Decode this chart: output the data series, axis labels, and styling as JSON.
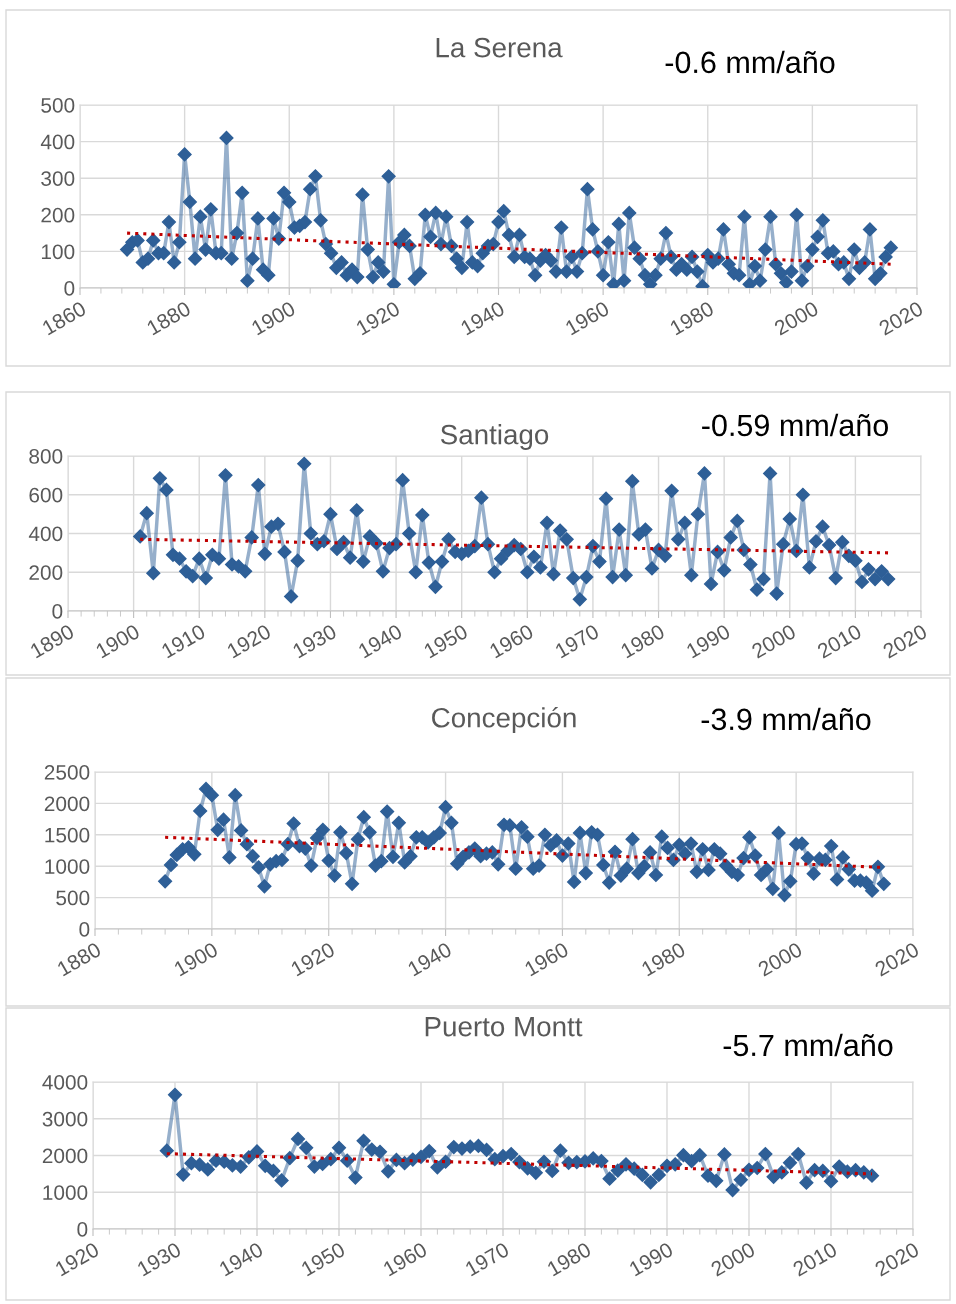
{
  "chart_data": [
    {
      "type": "line",
      "title": "La Serena",
      "annotations": [
        "-0.6 mm/año"
      ],
      "xlim": [
        1860,
        2020
      ],
      "xticks": [
        1860,
        1880,
        1900,
        1920,
        1940,
        1960,
        1980,
        2000,
        2020
      ],
      "ylim": [
        0,
        500
      ],
      "yticks": [
        0,
        100,
        200,
        300,
        400,
        500
      ],
      "grid": true,
      "legend": false,
      "series": [
        {
          "color": "#2e5f97",
          "marker": "diamond",
          "line_style": "solid",
          "x": [
            1869,
            1870,
            1871,
            1872,
            1873,
            1874,
            1875,
            1876,
            1877,
            1878,
            1879,
            1880,
            1881,
            1882,
            1883,
            1884,
            1885,
            1886,
            1887,
            1888,
            1889,
            1890,
            1891,
            1892,
            1893,
            1894,
            1895,
            1896,
            1897,
            1898,
            1899,
            1900,
            1901,
            1902,
            1903,
            1904,
            1905,
            1906,
            1907,
            1908,
            1909,
            1910,
            1911,
            1912,
            1913,
            1914,
            1915,
            1916,
            1917,
            1918,
            1919,
            1920,
            1921,
            1922,
            1923,
            1924,
            1925,
            1926,
            1927,
            1928,
            1929,
            1930,
            1931,
            1932,
            1933,
            1934,
            1935,
            1936,
            1937,
            1938,
            1939,
            1940,
            1941,
            1942,
            1943,
            1944,
            1945,
            1946,
            1947,
            1948,
            1949,
            1950,
            1951,
            1952,
            1953,
            1954,
            1955,
            1956,
            1957,
            1958,
            1959,
            1960,
            1961,
            1962,
            1963,
            1964,
            1965,
            1966,
            1967,
            1968,
            1969,
            1970,
            1971,
            1972,
            1973,
            1974,
            1975,
            1976,
            1977,
            1978,
            1979,
            1980,
            1981,
            1982,
            1983,
            1984,
            1985,
            1986,
            1987,
            1988,
            1989,
            1990,
            1991,
            1992,
            1993,
            1994,
            1995,
            1996,
            1997,
            1998,
            1999,
            2000,
            2001,
            2002,
            2003,
            2004,
            2005,
            2006,
            2007,
            2008,
            2009,
            2010,
            2011,
            2012,
            2013,
            2014,
            2015
          ],
          "values": [
            105,
            125,
            130,
            70,
            80,
            130,
            95,
            95,
            180,
            70,
            125,
            365,
            235,
            80,
            195,
            105,
            215,
            95,
            95,
            410,
            80,
            150,
            260,
            20,
            80,
            190,
            50,
            35,
            190,
            135,
            260,
            235,
            165,
            170,
            180,
            270,
            305,
            185,
            120,
            95,
            55,
            70,
            35,
            50,
            30,
            255,
            105,
            30,
            70,
            45,
            305,
            10,
            125,
            145,
            115,
            25,
            40,
            200,
            140,
            205,
            120,
            195,
            115,
            80,
            55,
            180,
            70,
            60,
            95,
            115,
            120,
            180,
            210,
            145,
            85,
            145,
            85,
            80,
            35,
            75,
            90,
            75,
            45,
            165,
            45,
            85,
            45,
            95,
            270,
            160,
            100,
            35,
            125,
            10,
            175,
            20,
            205,
            110,
            80,
            35,
            10,
            35,
            80,
            150,
            85,
            50,
            65,
            50,
            85,
            45,
            5,
            90,
            70,
            80,
            160,
            65,
            40,
            35,
            195,
            10,
            60,
            20,
            105,
            195,
            65,
            40,
            15,
            45,
            200,
            20,
            60,
            105,
            140,
            185,
            95,
            100,
            65,
            70,
            25,
            105,
            55,
            70,
            160,
            25,
            40,
            85,
            110
          ]
        },
        {
          "type": "line",
          "color": "#c00000",
          "marker": "none",
          "line_style": "dotted",
          "x": [
            1869,
            2015
          ],
          "values": [
            150,
            65
          ]
        }
      ]
    },
    {
      "type": "line",
      "title": "Santiago",
      "annotations": [
        "-0.59 mm/año"
      ],
      "xlim": [
        1890,
        2020
      ],
      "xticks": [
        1890,
        1900,
        1910,
        1920,
        1930,
        1940,
        1950,
        1960,
        1970,
        1980,
        1990,
        2000,
        2010,
        2020
      ],
      "ylim": [
        0,
        800
      ],
      "yticks": [
        0,
        200,
        400,
        600,
        800
      ],
      "grid": true,
      "legend": false,
      "series": [
        {
          "color": "#2e5f97",
          "marker": "diamond",
          "line_style": "solid",
          "x": [
            1901,
            1902,
            1903,
            1904,
            1905,
            1906,
            1907,
            1908,
            1909,
            1910,
            1911,
            1912,
            1913,
            1914,
            1915,
            1916,
            1917,
            1918,
            1919,
            1920,
            1921,
            1922,
            1923,
            1924,
            1925,
            1926,
            1927,
            1928,
            1929,
            1930,
            1931,
            1932,
            1933,
            1934,
            1935,
            1936,
            1937,
            1938,
            1939,
            1940,
            1941,
            1942,
            1943,
            1944,
            1945,
            1946,
            1947,
            1948,
            1949,
            1950,
            1951,
            1952,
            1953,
            1954,
            1955,
            1956,
            1957,
            1958,
            1959,
            1960,
            1961,
            1962,
            1963,
            1964,
            1965,
            1966,
            1967,
            1968,
            1969,
            1970,
            1971,
            1972,
            1973,
            1974,
            1975,
            1976,
            1977,
            1978,
            1979,
            1980,
            1981,
            1982,
            1983,
            1984,
            1985,
            1986,
            1987,
            1988,
            1989,
            1990,
            1991,
            1992,
            1993,
            1994,
            1995,
            1996,
            1997,
            1998,
            1999,
            2000,
            2001,
            2002,
            2003,
            2004,
            2005,
            2006,
            2007,
            2008,
            2009,
            2010,
            2011,
            2012,
            2013,
            2014,
            2015
          ],
          "values": [
            385,
            505,
            195,
            685,
            625,
            290,
            270,
            205,
            180,
            270,
            170,
            290,
            270,
            700,
            240,
            230,
            205,
            380,
            650,
            295,
            435,
            450,
            305,
            75,
            260,
            760,
            400,
            345,
            360,
            500,
            320,
            355,
            275,
            520,
            255,
            385,
            350,
            205,
            325,
            345,
            675,
            400,
            200,
            495,
            250,
            125,
            255,
            370,
            305,
            295,
            310,
            335,
            585,
            345,
            200,
            270,
            310,
            340,
            320,
            200,
            280,
            225,
            455,
            190,
            415,
            370,
            170,
            60,
            175,
            335,
            255,
            580,
            175,
            420,
            185,
            670,
            395,
            420,
            220,
            315,
            285,
            620,
            370,
            455,
            185,
            500,
            710,
            140,
            305,
            210,
            380,
            465,
            315,
            240,
            110,
            165,
            710,
            90,
            345,
            475,
            310,
            600,
            225,
            360,
            435,
            340,
            170,
            355,
            285,
            260,
            150,
            215,
            165,
            205,
            165
          ]
        },
        {
          "type": "line",
          "color": "#c00000",
          "marker": "none",
          "line_style": "dotted",
          "x": [
            1901,
            2015
          ],
          "values": [
            370,
            300
          ]
        }
      ]
    },
    {
      "type": "line",
      "title": "Concepción",
      "annotations": [
        "-3.9 mm/año"
      ],
      "xlim": [
        1880,
        2020
      ],
      "xticks": [
        1880,
        1900,
        1920,
        1940,
        1960,
        1980,
        2000,
        2020
      ],
      "ylim": [
        0,
        2500
      ],
      "yticks": [
        0,
        500,
        1000,
        1500,
        2000,
        2500
      ],
      "grid": true,
      "legend": false,
      "series": [
        {
          "color": "#2e5f97",
          "marker": "diamond",
          "line_style": "solid",
          "x": [
            1892,
            1893,
            1894,
            1895,
            1896,
            1897,
            1898,
            1899,
            1900,
            1901,
            1902,
            1903,
            1904,
            1905,
            1906,
            1907,
            1908,
            1909,
            1910,
            1911,
            1912,
            1913,
            1914,
            1915,
            1916,
            1917,
            1918,
            1919,
            1920,
            1921,
            1922,
            1923,
            1924,
            1925,
            1926,
            1927,
            1928,
            1929,
            1930,
            1931,
            1932,
            1933,
            1934,
            1935,
            1936,
            1937,
            1938,
            1939,
            1940,
            1941,
            1942,
            1943,
            1944,
            1945,
            1946,
            1947,
            1948,
            1949,
            1950,
            1951,
            1952,
            1953,
            1954,
            1955,
            1956,
            1957,
            1958,
            1959,
            1960,
            1961,
            1962,
            1963,
            1964,
            1965,
            1966,
            1967,
            1968,
            1969,
            1970,
            1971,
            1972,
            1973,
            1974,
            1975,
            1976,
            1977,
            1978,
            1979,
            1980,
            1981,
            1982,
            1983,
            1984,
            1985,
            1986,
            1987,
            1988,
            1989,
            1990,
            1991,
            1992,
            1993,
            1994,
            1995,
            1996,
            1997,
            1998,
            1999,
            2000,
            2001,
            2002,
            2003,
            2004,
            2005,
            2006,
            2007,
            2008,
            2009,
            2010,
            2011,
            2012,
            2013,
            2014,
            2015
          ],
          "values": [
            760,
            1020,
            1180,
            1270,
            1300,
            1190,
            1880,
            2230,
            2130,
            1580,
            1740,
            1140,
            2130,
            1570,
            1350,
            1160,
            980,
            680,
            1030,
            1080,
            1100,
            1350,
            1680,
            1320,
            1280,
            1010,
            1450,
            1580,
            1090,
            850,
            1540,
            1210,
            720,
            1430,
            1780,
            1540,
            1010,
            1080,
            1870,
            1150,
            1690,
            1060,
            1160,
            1460,
            1460,
            1380,
            1460,
            1530,
            1940,
            1690,
            1040,
            1150,
            1220,
            1280,
            1160,
            1200,
            1220,
            1030,
            1660,
            1650,
            960,
            1620,
            1470,
            960,
            1010,
            1500,
            1330,
            1410,
            1170,
            1360,
            750,
            1530,
            890,
            1540,
            1500,
            1020,
            740,
            1230,
            850,
            960,
            1430,
            890,
            1000,
            1220,
            860,
            1470,
            1290,
            1100,
            1340,
            1200,
            1360,
            910,
            1270,
            940,
            1270,
            1200,
            1010,
            910,
            860,
            1130,
            1460,
            1170,
            860,
            950,
            640,
            1530,
            540,
            760,
            1350,
            1360,
            1130,
            880,
            1120,
            1100,
            1320,
            790,
            1140,
            950,
            770,
            770,
            740,
            610,
            990,
            720
          ]
        },
        {
          "type": "line",
          "color": "#c00000",
          "marker": "none",
          "line_style": "dotted",
          "x": [
            1892,
            2015
          ],
          "values": [
            1460,
            980
          ]
        }
      ]
    },
    {
      "type": "line",
      "title": "Puerto Montt",
      "annotations": [
        "-5.7 mm/año"
      ],
      "xlim": [
        1920,
        2020
      ],
      "xticks": [
        1920,
        1930,
        1940,
        1950,
        1960,
        1970,
        1980,
        1990,
        2000,
        2010,
        2020
      ],
      "ylim": [
        0,
        4000
      ],
      "yticks": [
        0,
        1000,
        2000,
        3000,
        4000
      ],
      "grid": true,
      "legend": false,
      "series": [
        {
          "color": "#2e5f97",
          "marker": "diamond",
          "line_style": "solid",
          "x": [
            1929,
            1930,
            1931,
            1932,
            1933,
            1934,
            1935,
            1936,
            1937,
            1938,
            1939,
            1940,
            1941,
            1942,
            1943,
            1944,
            1945,
            1946,
            1947,
            1948,
            1949,
            1950,
            1951,
            1952,
            1953,
            1954,
            1955,
            1956,
            1957,
            1958,
            1959,
            1960,
            1961,
            1962,
            1963,
            1964,
            1965,
            1966,
            1967,
            1968,
            1969,
            1970,
            1971,
            1972,
            1973,
            1974,
            1975,
            1976,
            1977,
            1978,
            1979,
            1980,
            1981,
            1982,
            1983,
            1984,
            1985,
            1986,
            1987,
            1988,
            1989,
            1990,
            1991,
            1992,
            1993,
            1994,
            1995,
            1996,
            1997,
            1998,
            1999,
            2000,
            2001,
            2002,
            2003,
            2004,
            2005,
            2006,
            2007,
            2008,
            2009,
            2010,
            2011,
            2012,
            2013,
            2014,
            2015
          ],
          "values": [
            2130,
            3650,
            1480,
            1790,
            1750,
            1620,
            1860,
            1830,
            1730,
            1700,
            1950,
            2110,
            1720,
            1580,
            1320,
            1930,
            2450,
            2210,
            1700,
            1770,
            1900,
            2210,
            1860,
            1400,
            2400,
            2160,
            2100,
            1570,
            1880,
            1790,
            1890,
            1960,
            2120,
            1680,
            1830,
            2230,
            2190,
            2240,
            2260,
            2150,
            1900,
            1980,
            2040,
            1820,
            1650,
            1530,
            1830,
            1580,
            2130,
            1800,
            1820,
            1840,
            1920,
            1850,
            1370,
            1590,
            1760,
            1640,
            1470,
            1270,
            1470,
            1720,
            1760,
            2010,
            1850,
            2010,
            1450,
            1310,
            2030,
            1060,
            1340,
            1610,
            1660,
            2040,
            1420,
            1540,
            1800,
            2040,
            1260,
            1600,
            1580,
            1300,
            1700,
            1560,
            1600,
            1540,
            1450
          ]
        },
        {
          "type": "line",
          "color": "#c00000",
          "marker": "none",
          "line_style": "dotted",
          "x": [
            1929,
            2015
          ],
          "values": [
            2050,
            1500
          ]
        }
      ]
    }
  ]
}
